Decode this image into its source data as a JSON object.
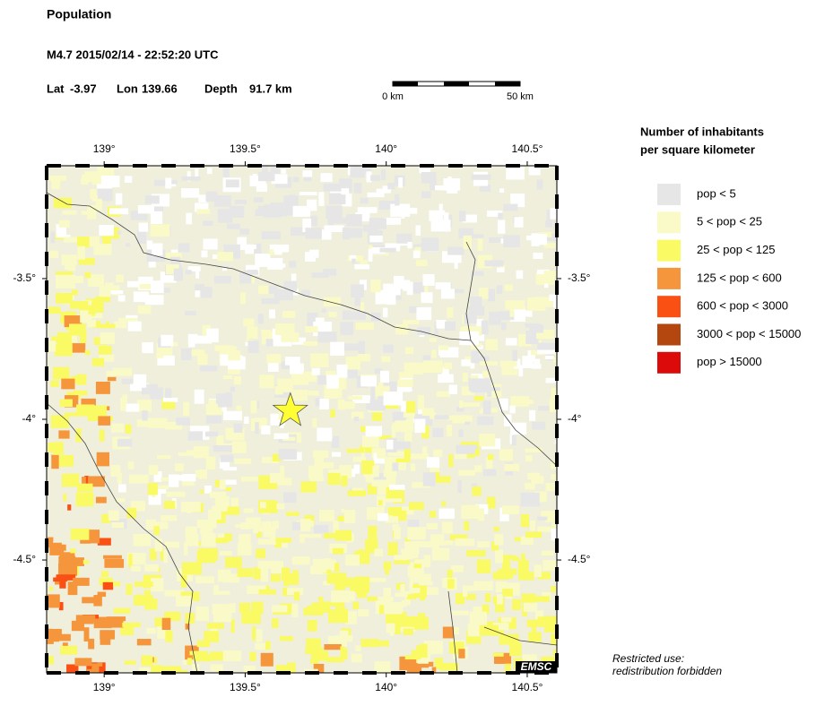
{
  "header": {
    "title": "Population",
    "event": "M4.7  2015/02/14 - 22:52:20 UTC",
    "lat_label": "Lat",
    "lat": -3.97,
    "lon_label": "Lon",
    "lon": 139.66,
    "depth_label": "Depth",
    "depth": "91.7 km"
  },
  "scale_bar": {
    "start": "0 km",
    "end": "50 km"
  },
  "map": {
    "xlim": [
      138.796,
      140.605
    ],
    "ylim": [
      -4.901,
      -3.099
    ],
    "xticks": [
      {
        "value": 139,
        "label": "139°"
      },
      {
        "value": 139.5,
        "label": "139.5°"
      },
      {
        "value": 140,
        "label": "140°"
      },
      {
        "value": 140.5,
        "label": "140.5°"
      }
    ],
    "yticks": [
      {
        "value": -3.5,
        "label": "-3.5°"
      },
      {
        "value": -4,
        "label": "-4°"
      },
      {
        "value": -4.5,
        "label": "-4.5°"
      }
    ],
    "logo": "EMSC",
    "note": [
      "Restricted use:",
      "redistribution forbidden"
    ]
  },
  "legend": {
    "title": [
      "Number of inhabitants",
      "per square kilometer"
    ],
    "items": [
      {
        "label": "pop < 5",
        "color": "#e6e6e6"
      },
      {
        "label": "5 < pop < 25",
        "color": "#fafac8"
      },
      {
        "label": "25 < pop < 125",
        "color": "#fafa64"
      },
      {
        "label": "125 < pop < 600",
        "color": "#f5963c"
      },
      {
        "label": "600 < pop < 3000",
        "color": "#fa5014"
      },
      {
        "label": "3000 < pop < 15000",
        "color": "#b4460f"
      },
      {
        "label": "pop > 15000",
        "color": "#dc0a0a"
      }
    ]
  }
}
